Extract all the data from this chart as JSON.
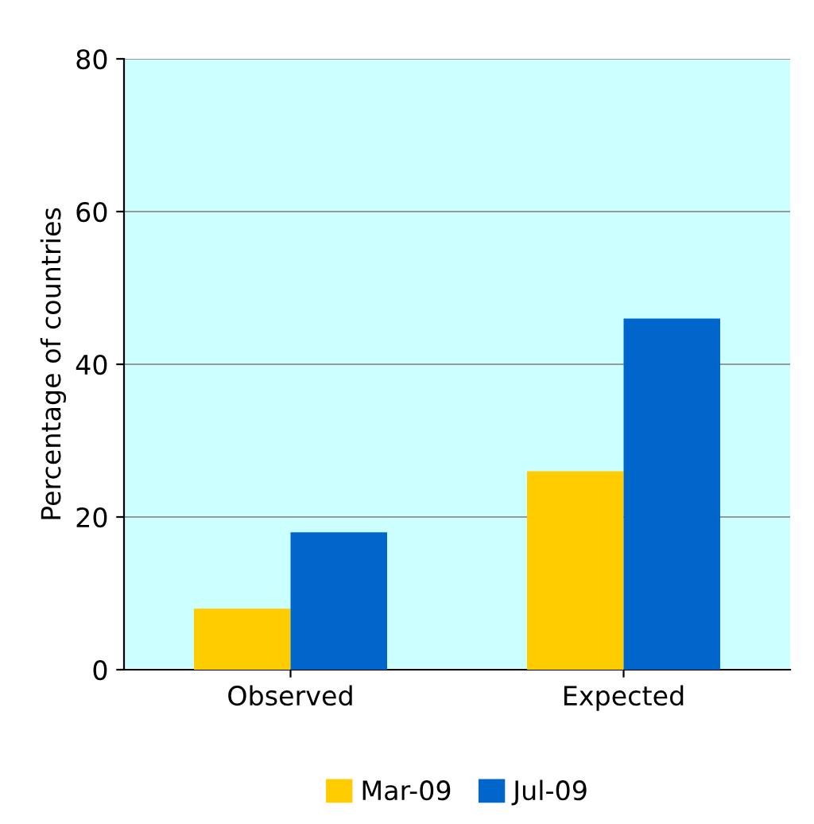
{
  "chart_data": {
    "type": "bar",
    "ylabel": "Percentage of countries",
    "categories": [
      "Observed",
      "Expected"
    ],
    "series": [
      {
        "name": "Mar-09",
        "color": "#ffcc00",
        "values": [
          8,
          26
        ]
      },
      {
        "name": "Jul-09",
        "color": "#0066cc",
        "values": [
          18,
          46
        ]
      }
    ],
    "ylim": [
      0,
      80
    ],
    "yticks": [
      0,
      20,
      40,
      60,
      80
    ],
    "grid": "y",
    "legend": "bottom"
  }
}
